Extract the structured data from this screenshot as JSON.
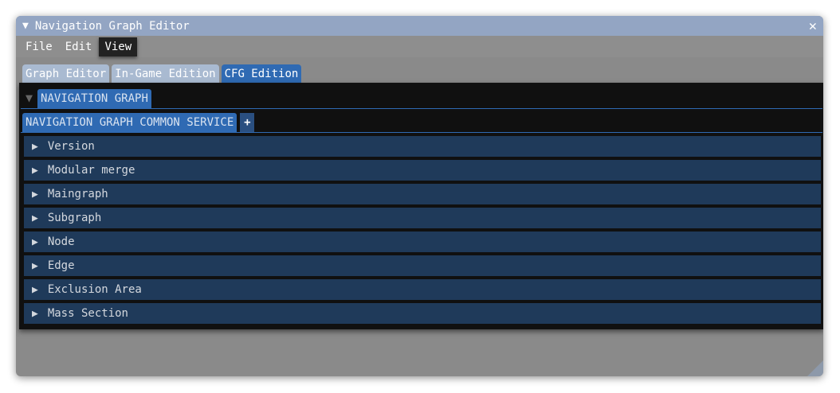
{
  "window": {
    "title": "Navigation Graph Editor"
  },
  "menu": [
    "File",
    "Edit",
    "View"
  ],
  "tabs": [
    "Graph Editor",
    "In-Game Edition",
    "CFG Edition"
  ],
  "section": "NAVIGATION GRAPH",
  "subtab": "NAVIGATION GRAPH COMMON SERVICE",
  "add_label": "+",
  "rows": [
    "Version",
    "Modular merge",
    "Maingraph",
    "Subgraph",
    "Node",
    "Edge",
    "Exclusion Area",
    "Mass Section"
  ]
}
